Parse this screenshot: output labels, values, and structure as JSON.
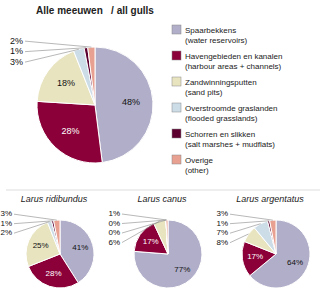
{
  "chart_data": [
    {
      "type": "pie",
      "title": "Alle meeuwen   / all gulls",
      "categories": [
        "Spaarbekkens\n(water reservoirs)",
        "Havengebieden en kanalen\n(harbour areas + channels)",
        "Zandwinningsputten\n(sand pits)",
        "Overstroomde graslanden\n(flooded grasslands)",
        "Schorren en slikken\n(salt marshes + mudflats)",
        "Overige\n(other)"
      ],
      "values": [
        48,
        28,
        18,
        3,
        1,
        2
      ],
      "value_labels": [
        "48%",
        "28%",
        "18%",
        "3%",
        "1%",
        "2%"
      ],
      "colors": [
        "#b0aec8",
        "#8b0038",
        "#e8e4c0",
        "#ccdde8",
        "#5c0030",
        "#e8a090"
      ],
      "data_labels": true,
      "legend": "right"
    },
    {
      "type": "pie",
      "title": "Larus ridibundus",
      "values": [
        41,
        28,
        25,
        2,
        1,
        3
      ],
      "value_labels": [
        "41%",
        "28%",
        "25%",
        "2%",
        "1%",
        "3%"
      ],
      "colors": [
        "#b0aec8",
        "#8b0038",
        "#e8e4c0",
        "#ccdde8",
        "#5c0030",
        "#e8a090"
      ],
      "data_labels": true
    },
    {
      "type": "pie",
      "title": "Larus canus",
      "values": [
        77,
        17,
        6,
        0,
        0,
        1
      ],
      "value_labels": [
        "77%",
        "17%",
        "6%",
        "0%",
        "0%",
        "1%"
      ],
      "colors": [
        "#b0aec8",
        "#8b0038",
        "#e8e4c0",
        "#ccdde8",
        "#5c0030",
        "#e8a090"
      ],
      "data_labels": true
    },
    {
      "type": "pie",
      "title": "Larus argentatus",
      "values": [
        64,
        17,
        8,
        7,
        1,
        3
      ],
      "value_labels": [
        "64%",
        "17%",
        "8%",
        "7%",
        "1%",
        "3%"
      ],
      "colors": [
        "#b0aec8",
        "#8b0038",
        "#e8e4c0",
        "#ccdde8",
        "#5c0030",
        "#e8a090"
      ],
      "data_labels": true
    }
  ]
}
